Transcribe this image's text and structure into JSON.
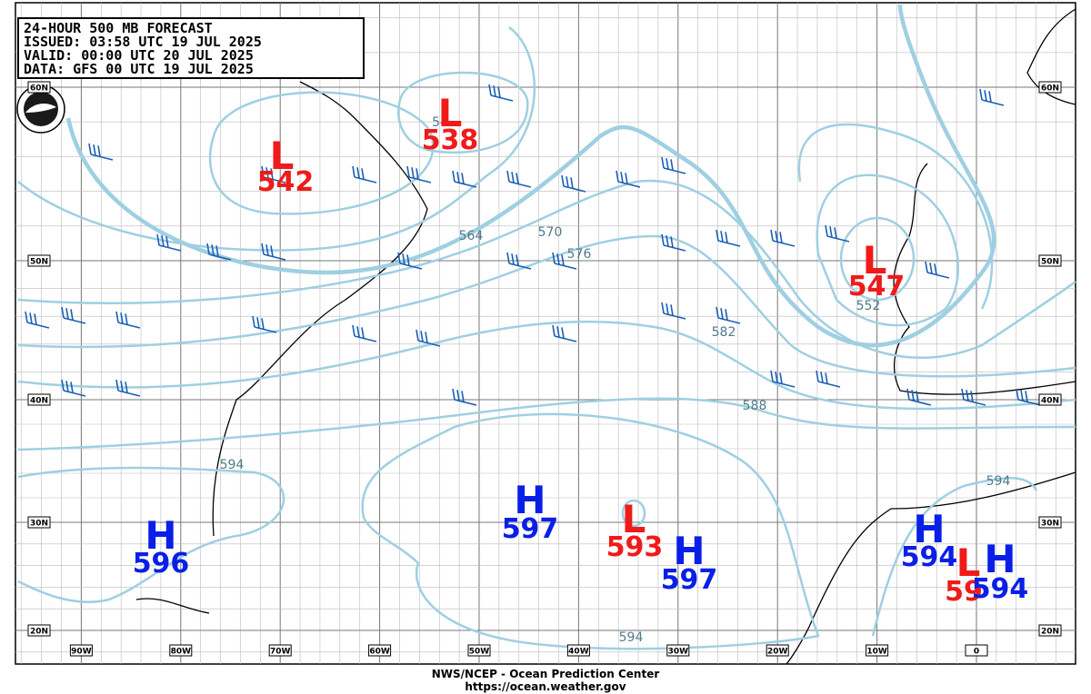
{
  "header": {
    "lines": [
      "24-HOUR 500 MB FORECAST",
      "ISSUED: 03:58 UTC 19 JUL 2025",
      "VALID:  00:00 UTC 20 JUL 2025",
      "DATA:   GFS 00 UTC 19 JUL 2025"
    ]
  },
  "centers": [
    {
      "kind": "L",
      "value": "542"
    },
    {
      "kind": "L",
      "value": "538"
    },
    {
      "kind": "L",
      "value": "547"
    },
    {
      "kind": "H",
      "value": "596"
    },
    {
      "kind": "H",
      "value": "597"
    },
    {
      "kind": "L",
      "value": "593"
    },
    {
      "kind": "H",
      "value": "597"
    },
    {
      "kind": "H",
      "value": "594"
    },
    {
      "kind": "L",
      "value": "59"
    },
    {
      "kind": "H",
      "value": "594"
    }
  ],
  "contour_labels": [
    "564",
    "570",
    "576",
    "582",
    "588",
    "594",
    "594",
    "594",
    "552",
    "54"
  ],
  "lat_labels": [
    "20N",
    "30N",
    "40N",
    "50N",
    "60N"
  ],
  "lon_labels": [
    "90W",
    "80W",
    "70W",
    "60W",
    "50W",
    "40W",
    "30W",
    "20W",
    "10W",
    "0"
  ],
  "footer": {
    "line1": "NWS/NCEP - Ocean Prediction Center",
    "line2": "https://ocean.weather.gov"
  }
}
